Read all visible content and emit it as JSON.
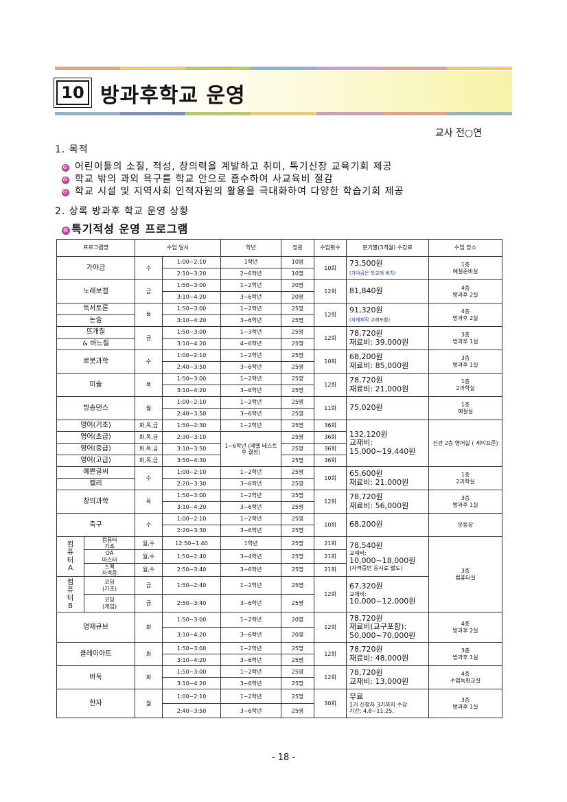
{
  "title_num": "10",
  "title": "방과후학교 운영",
  "teacher": "교사 전○연",
  "section1": "1. 목적",
  "purposes": [
    "어린이들의 소질, 적성, 창의력을 계발하고 취미, 특기신장 교육기회 제공",
    "학교 밖의 과외 욕구를 학교 안으로 흡수하여 사교육비 절감",
    "학교 시설 및 지역사회 인적자원의 활용을 극대화하여 다양한 학습기회 제공"
  ],
  "section2": "2. 상록 방과후 학교 운영 상황",
  "subheading": "특기적성 운영 프로그램",
  "bullet_glyph": "⊖",
  "headers": [
    "프로그램명",
    "수업 일시",
    "학년",
    "정원",
    "수업횟수",
    "분기별(3개월) 수강료",
    "수업 장소"
  ],
  "rows": {
    "gayageum": {
      "name": "가야금",
      "day": "수",
      "t1": "1:00~2:10",
      "g1": "1학년",
      "c1": "10명",
      "t2": "2:10~3:20",
      "g2": "2~6학년",
      "c2": "10명",
      "count": "10회",
      "fee": "73,500원",
      "fee_note": "(가야금은 학교에 비치)",
      "place1": "1층",
      "place2": "예절준비실"
    },
    "vocal": {
      "name": "노래보컬",
      "day": "금",
      "t1": "1:50~3:00",
      "g1": "1~2학년",
      "c1": "20명",
      "t2": "3:10~4:20",
      "g2": "3~6학년",
      "c2": "20명",
      "count": "12회",
      "fee": "81,840원",
      "place1": "4층",
      "place2": "방과후 2실"
    },
    "debate": {
      "name1": "독서토론",
      "name2": "논술",
      "day": "목",
      "t1": "1:50~3:00",
      "g1": "1~2학년",
      "c1": "25명",
      "t2": "3:10~4:20",
      "g2": "3~6학년",
      "c2": "25명",
      "count": "12회",
      "fee": "91,320원",
      "fee_note": "(자체제작 교재포함)",
      "place1": "4층",
      "place2": "방과후 2실"
    },
    "knit": {
      "name1": "뜨개질",
      "name2": "& 바느질",
      "day": "금",
      "t1": "1:50~3:00",
      "g1": "1~3학년",
      "c1": "25명",
      "t2": "3:10~4:20",
      "g2": "4~6학년",
      "c2": "25명",
      "count": "12회",
      "fee": "78,720원",
      "fee2": "재료비: 39,000원",
      "place1": "3층",
      "place2": "방과후 1실"
    },
    "robot": {
      "name": "로봇과학",
      "day": "수",
      "t1": "1:00~2:10",
      "g1": "1~2학년",
      "c1": "25명",
      "t2": "2:40~3:50",
      "g2": "3~6학년",
      "c2": "25명",
      "count": "10회",
      "fee": "68,200원",
      "fee2": "재료비: 85,000원",
      "place1": "3층",
      "place2": "방과후 1실"
    },
    "art": {
      "name": "미술",
      "day": "목",
      "t1": "1:50~3:00",
      "g1": "1~2학년",
      "c1": "25명",
      "t2": "3:10~4:20",
      "g2": "3~6학년",
      "c2": "25명",
      "count": "12회",
      "fee": "78,720원",
      "fee2": "재료비: 21,000원",
      "place1": "1층",
      "place2": "2과학실"
    },
    "dance": {
      "name": "방송댄스",
      "day": "월",
      "t1": "1:00~2:10",
      "g1": "1~2학년",
      "c1": "25명",
      "t2": "2:40~3:50",
      "g2": "3~6학년",
      "c2": "25명",
      "count": "11회",
      "fee": "75,020원",
      "place1": "1층",
      "place2": "예절실"
    },
    "english": {
      "items": [
        {
          "name": "영어(기초)",
          "day": "화,목,금",
          "time": "1:50~2:30",
          "grade": "1~2학년",
          "cap": "25명",
          "count": "36회"
        },
        {
          "name": "영어(초급)",
          "day": "화,목,금",
          "time": "2:30~3:10",
          "cap": "25명",
          "count": "36회"
        },
        {
          "name": "영어(중급)",
          "day": "화,목,금",
          "time": "3:10~3:50",
          "cap": "25명",
          "count": "36회"
        },
        {
          "name": "영어(고급)",
          "day": "화,목,금",
          "time": "3:50~4:30",
          "cap": "25명",
          "count": "36회"
        }
      ],
      "grade_merged": "1~6학년 (레벨 테스트 후 결정)",
      "fee": "132,120원",
      "fee2": "교재비:",
      "fee3": "15,000~19,440원",
      "place": "신관 2층 영어실 ( 세이프존)"
    },
    "calli": {
      "name1": "예쁜글씨",
      "name2": "캘리",
      "day": "수",
      "t1": "1:00~2:10",
      "g1": "1~2학년",
      "c1": "25명",
      "t2": "2:20~3:30",
      "g2": "3~6학년",
      "c2": "25명",
      "count": "10회",
      "fee": "65,600원",
      "fee2": "재료비: 21,000원",
      "place1": "1층",
      "place2": "2과학실"
    },
    "science": {
      "name": "창의과학",
      "day": "목",
      "t1": "1:50~3:00",
      "g1": "1~2학년",
      "c1": "25명",
      "t2": "3:10~4:20",
      "g2": "3~6학년",
      "c2": "25명",
      "count": "12회",
      "fee": "78,720원",
      "fee2": "재료비: 56,000원",
      "place1": "3층",
      "place2": "방과후 1실"
    },
    "soccer": {
      "name": "축구",
      "day": "수",
      "t1": "1:00~2:10",
      "g1": "1~2학년",
      "c1": "25명",
      "t2": "2:20~3:30",
      "g2": "3~6학년",
      "c2": "25명",
      "count": "10회",
      "fee": "68,200원",
      "place": "운동장"
    },
    "computerA": {
      "group": "컴\n퓨\n터\nA",
      "items": [
        {
          "name": "컴퓨터\n기초",
          "day": "월,수",
          "time": "12:50~1:40",
          "grade": "1학년",
          "cap": "25명",
          "count": "21회"
        },
        {
          "name": "OA\n마스터",
          "day": "월,수",
          "time": "1:50~2:40",
          "grade": "3~4학년",
          "cap": "25명",
          "count": "21회"
        },
        {
          "name": "스펙\n자격증",
          "day": "월,수",
          "time": "2:50~3:40",
          "grade": "3~6학년",
          "cap": "25명",
          "count": "21회"
        }
      ],
      "fee": "78,540원",
      "fee2": "교재비:",
      "fee3": "10,000~18,000원",
      "fee4": "(자격증반 응시료 별도)"
    },
    "computerB": {
      "group": "컴\n퓨\n터\nB",
      "items": [
        {
          "name": "코딩\n(기초)",
          "day": "금",
          "time": "1:50~2:40",
          "grade": "1~2학년",
          "cap": "25명"
        },
        {
          "name": "코딩\n(게임)",
          "day": "금",
          "time": "2:50~3:40",
          "grade": "3~6학년",
          "cap": "25명"
        }
      ],
      "count": "12회",
      "fee": "67,320원",
      "fee2": "교재비:",
      "fee3": "10,000~12,000원"
    },
    "computer_place": "3층\n컴퓨터실",
    "cube": {
      "name": "영재큐브",
      "day": "화",
      "t1": "1:50~3:00",
      "g1": "1~2학년",
      "c1": "20명",
      "t2": "3:10~4:20",
      "g2": "3~6학년",
      "c2": "20명",
      "count": "12회",
      "fee": "78,720원",
      "fee2": "재료비(교구포함):",
      "fee3": "50,000~70,000원",
      "place1": "4층",
      "place2": "방과후 2실"
    },
    "clay": {
      "name": "클레이아트",
      "day": "화",
      "t1": "1:50~3:00",
      "g1": "1~2학년",
      "c1": "25명",
      "t2": "3:10~4:20",
      "g2": "3~6학년",
      "c2": "25명",
      "count": "12회",
      "fee": "78,720원",
      "fee2": "재료비: 48,000원",
      "place1": "3층",
      "place2": "방과후 1실"
    },
    "baduk": {
      "name": "바둑",
      "day": "화",
      "t1": "1:50~3:00",
      "g1": "1~2학년",
      "c1": "25명",
      "t2": "3:10~4:20",
      "g2": "3~6학년",
      "c2": "25명",
      "count": "12회",
      "fee": "78,720원",
      "fee2": "교재비: 13,000원",
      "place1": "4층",
      "place2": "수업녹화교실"
    },
    "hanja": {
      "name": "한자",
      "day": "월",
      "t1": "1:00~2:10",
      "g1": "1~2학년",
      "c1": "25명",
      "t2": "2:40~3:50",
      "g2": "3~6학년",
      "c2": "25명",
      "count": "30회",
      "fee": "무료",
      "fee2": "1기 신청자 3기까지 수강",
      "fee3": "기간: 4.8~11.25.",
      "place1": "3층",
      "place2": "방과후 1실"
    }
  },
  "page_number": "- 18 -",
  "colors": {
    "accent": "#c0409a",
    "fee_note": "#1a3fb0"
  }
}
